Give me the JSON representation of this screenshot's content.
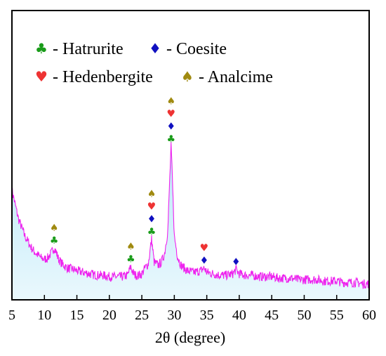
{
  "chart_data": {
    "type": "line",
    "xlabel": "2θ (degree)",
    "ylabel": "",
    "xlim": [
      5,
      60
    ],
    "ylim": [
      0,
      100
    ],
    "grid": false,
    "x_ticks": [
      5,
      10,
      15,
      20,
      25,
      30,
      35,
      40,
      45,
      50,
      55,
      60
    ],
    "legend": {
      "placement": "top-left",
      "entries": [
        {
          "id": "hatrurite",
          "symbol": "♣",
          "color": "#1a9c1a",
          "label": "- Hatrurite"
        },
        {
          "id": "coesite",
          "symbol": "♦",
          "color": "#1010c0",
          "label": "- Coesite"
        },
        {
          "id": "hedenbergite",
          "symbol": "♥",
          "color": "#ee3333",
          "label": "- Hedenbergite"
        },
        {
          "id": "analcime",
          "symbol": "♠",
          "color": "#a08a10",
          "label": "- Analcime"
        }
      ]
    },
    "series": [
      {
        "line_color": "#ee22ee",
        "fill_color_top": "#b8e8f8",
        "fill_color_bottom": "#eaf8fd",
        "points": [
          [
            5,
            38
          ],
          [
            5.5,
            33
          ],
          [
            6,
            28
          ],
          [
            6.5,
            25
          ],
          [
            7,
            22
          ],
          [
            7.5,
            20
          ],
          [
            8,
            18
          ],
          [
            8.5,
            16.5
          ],
          [
            9,
            15.5
          ],
          [
            9.5,
            14.5
          ],
          [
            10,
            14
          ],
          [
            10.5,
            14.5
          ],
          [
            11,
            16
          ],
          [
            11.5,
            18
          ],
          [
            11.8,
            16.5
          ],
          [
            12.2,
            14
          ],
          [
            12.7,
            12.5
          ],
          [
            13.5,
            11
          ],
          [
            14.5,
            10.5
          ],
          [
            15,
            10
          ],
          [
            16,
            9.5
          ],
          [
            17,
            9
          ],
          [
            18,
            8.5
          ],
          [
            19,
            8.5
          ],
          [
            20,
            8
          ],
          [
            21,
            8
          ],
          [
            22,
            8
          ],
          [
            22.8,
            8.5
          ],
          [
            23.3,
            11.5
          ],
          [
            23.6,
            9.5
          ],
          [
            24,
            8.5
          ],
          [
            24.5,
            8.5
          ],
          [
            25,
            9
          ],
          [
            25.5,
            11
          ],
          [
            26,
            12.5
          ],
          [
            26.5,
            21
          ],
          [
            26.9,
            13
          ],
          [
            27.5,
            12
          ],
          [
            28,
            13
          ],
          [
            28.5,
            16
          ],
          [
            29,
            24
          ],
          [
            29.3,
            42
          ],
          [
            29.5,
            53
          ],
          [
            29.7,
            42
          ],
          [
            30,
            22
          ],
          [
            30.5,
            15
          ],
          [
            31,
            12
          ],
          [
            32,
            10
          ],
          [
            33,
            9.5
          ],
          [
            34,
            10
          ],
          [
            34.6,
            11
          ],
          [
            35,
            9.5
          ],
          [
            36,
            9
          ],
          [
            37,
            8.5
          ],
          [
            38,
            8.5
          ],
          [
            39,
            9
          ],
          [
            39.5,
            10.5
          ],
          [
            40,
            9
          ],
          [
            41,
            8.5
          ],
          [
            42,
            8.5
          ],
          [
            43,
            8
          ],
          [
            44,
            8
          ],
          [
            45,
            8
          ],
          [
            46,
            7.5
          ],
          [
            47,
            7.5
          ],
          [
            48,
            7.5
          ],
          [
            49,
            7
          ],
          [
            50,
            7
          ],
          [
            51,
            7
          ],
          [
            52,
            7
          ],
          [
            53,
            6.5
          ],
          [
            54,
            6.5
          ],
          [
            55,
            6.5
          ],
          [
            56,
            6
          ],
          [
            57,
            6
          ],
          [
            58,
            6
          ],
          [
            59,
            5.5
          ],
          [
            60,
            5.5
          ]
        ]
      }
    ],
    "annotations": [
      {
        "x": 11.5,
        "y": 18,
        "symbols": [
          "hatrurite",
          "analcime"
        ]
      },
      {
        "x": 23.3,
        "y": 11.5,
        "symbols": [
          "hatrurite",
          "analcime"
        ]
      },
      {
        "x": 26.5,
        "y": 21,
        "symbols": [
          "hatrurite",
          "coesite",
          "hedenbergite",
          "analcime"
        ]
      },
      {
        "x": 29.5,
        "y": 53,
        "symbols": [
          "hatrurite",
          "coesite",
          "hedenbergite",
          "analcime"
        ]
      },
      {
        "x": 34.6,
        "y": 11,
        "symbols": [
          "coesite",
          "hedenbergite"
        ]
      },
      {
        "x": 39.5,
        "y": 10.5,
        "symbols": [
          "coesite"
        ]
      }
    ]
  }
}
